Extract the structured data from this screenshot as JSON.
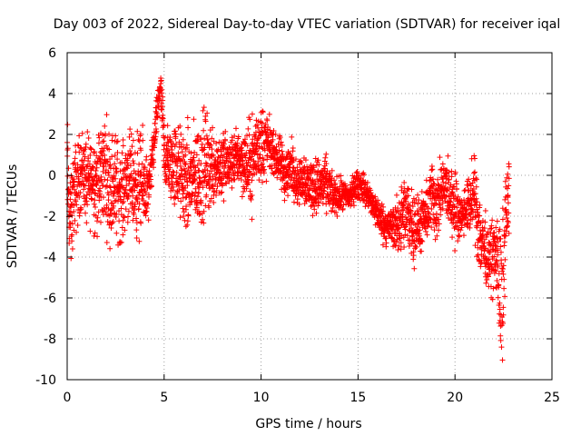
{
  "chart_data": {
    "type": "scatter",
    "title": "Day 003 of 2022, Sidereal Day-to-day VTEC variation (SDTVAR) for receiver iqal",
    "xlabel": "GPS time / hours",
    "ylabel": "SDTVAR / TECUs",
    "xlim": [
      0,
      25
    ],
    "ylim": [
      -10,
      6
    ],
    "xticks": [
      "0",
      "5",
      "10",
      "15",
      "20",
      "25"
    ],
    "yticks": [
      "-10",
      "-8",
      "-6",
      "-4",
      "-2",
      "0",
      "2",
      "4",
      "6"
    ],
    "grid": true,
    "marker": "+",
    "series_color": "#ff0000",
    "series": [
      {
        "name": "SDTVAR",
        "trend": [
          [
            0.0,
            0.5,
            3.0
          ],
          [
            0.1,
            -1.5,
            3.0
          ],
          [
            0.2,
            -2.5,
            2.5
          ],
          [
            0.3,
            -1.0,
            2.5
          ],
          [
            0.5,
            -0.5,
            2.5
          ],
          [
            0.8,
            0.5,
            2.0
          ],
          [
            1.0,
            -0.5,
            2.5
          ],
          [
            1.3,
            0.0,
            2.5
          ],
          [
            1.6,
            -0.5,
            3.0
          ],
          [
            1.9,
            0.5,
            3.0
          ],
          [
            2.2,
            -0.5,
            3.0
          ],
          [
            2.5,
            -0.5,
            3.0
          ],
          [
            2.8,
            -1.0,
            2.5
          ],
          [
            3.1,
            0.0,
            2.5
          ],
          [
            3.4,
            -0.5,
            2.5
          ],
          [
            3.7,
            -0.5,
            3.0
          ],
          [
            4.0,
            -0.5,
            2.5
          ],
          [
            4.2,
            -1.0,
            1.5
          ],
          [
            4.8,
            4.5,
            0.8
          ],
          [
            4.9,
            3.0,
            1.5
          ],
          [
            5.0,
            1.0,
            2.0
          ],
          [
            5.3,
            0.5,
            2.0
          ],
          [
            5.6,
            0.5,
            2.5
          ],
          [
            5.9,
            0.0,
            2.5
          ],
          [
            6.2,
            -0.5,
            3.0
          ],
          [
            6.5,
            0.0,
            2.5
          ],
          [
            6.8,
            0.0,
            3.0
          ],
          [
            7.1,
            0.5,
            3.0
          ],
          [
            7.4,
            0.5,
            2.5
          ],
          [
            7.7,
            0.5,
            2.0
          ],
          [
            8.0,
            0.5,
            2.0
          ],
          [
            8.4,
            0.5,
            1.5
          ],
          [
            8.8,
            1.0,
            1.5
          ],
          [
            9.2,
            0.5,
            2.0
          ],
          [
            9.5,
            0.5,
            2.5
          ],
          [
            9.8,
            1.5,
            2.0
          ],
          [
            10.1,
            1.5,
            2.5
          ],
          [
            10.4,
            1.5,
            1.5
          ],
          [
            10.7,
            1.0,
            1.0
          ],
          [
            11.0,
            0.5,
            1.5
          ],
          [
            11.3,
            0.0,
            1.5
          ],
          [
            11.6,
            0.5,
            1.5
          ],
          [
            11.9,
            -0.5,
            1.0
          ],
          [
            12.2,
            0.0,
            1.5
          ],
          [
            12.5,
            -0.5,
            1.5
          ],
          [
            12.8,
            -0.5,
            1.5
          ],
          [
            13.1,
            -0.5,
            1.5
          ],
          [
            13.4,
            -0.5,
            1.5
          ],
          [
            13.7,
            -1.0,
            1.0
          ],
          [
            14.0,
            -1.0,
            1.0
          ],
          [
            14.3,
            -1.0,
            0.8
          ],
          [
            14.6,
            -1.0,
            0.8
          ],
          [
            14.9,
            -0.5,
            0.8
          ],
          [
            15.2,
            -0.5,
            0.8
          ],
          [
            15.5,
            -1.0,
            0.8
          ],
          [
            15.8,
            -1.5,
            0.8
          ],
          [
            16.1,
            -2.0,
            1.0
          ],
          [
            16.4,
            -2.5,
            1.0
          ],
          [
            16.7,
            -2.5,
            1.0
          ],
          [
            17.0,
            -2.5,
            1.5
          ],
          [
            17.3,
            -2.0,
            2.0
          ],
          [
            17.6,
            -2.0,
            2.0
          ],
          [
            17.9,
            -2.5,
            2.0
          ],
          [
            18.2,
            -2.5,
            1.5
          ],
          [
            18.5,
            -2.0,
            1.5
          ],
          [
            18.8,
            -1.0,
            2.0
          ],
          [
            19.1,
            -1.5,
            2.0
          ],
          [
            19.4,
            -0.5,
            1.5
          ],
          [
            19.7,
            -1.0,
            2.0
          ],
          [
            20.0,
            -1.5,
            2.0
          ],
          [
            20.3,
            -2.0,
            1.0
          ],
          [
            21.0,
            -1.0,
            2.0
          ],
          [
            21.3,
            -3.0,
            2.5
          ],
          [
            21.7,
            -4.0,
            1.5
          ],
          [
            22.2,
            -4.0,
            2.5
          ],
          [
            22.4,
            -7.0,
            5.0
          ],
          [
            22.6,
            -2.0,
            2.0
          ],
          [
            22.8,
            -1.0,
            2.5
          ]
        ]
      }
    ]
  }
}
